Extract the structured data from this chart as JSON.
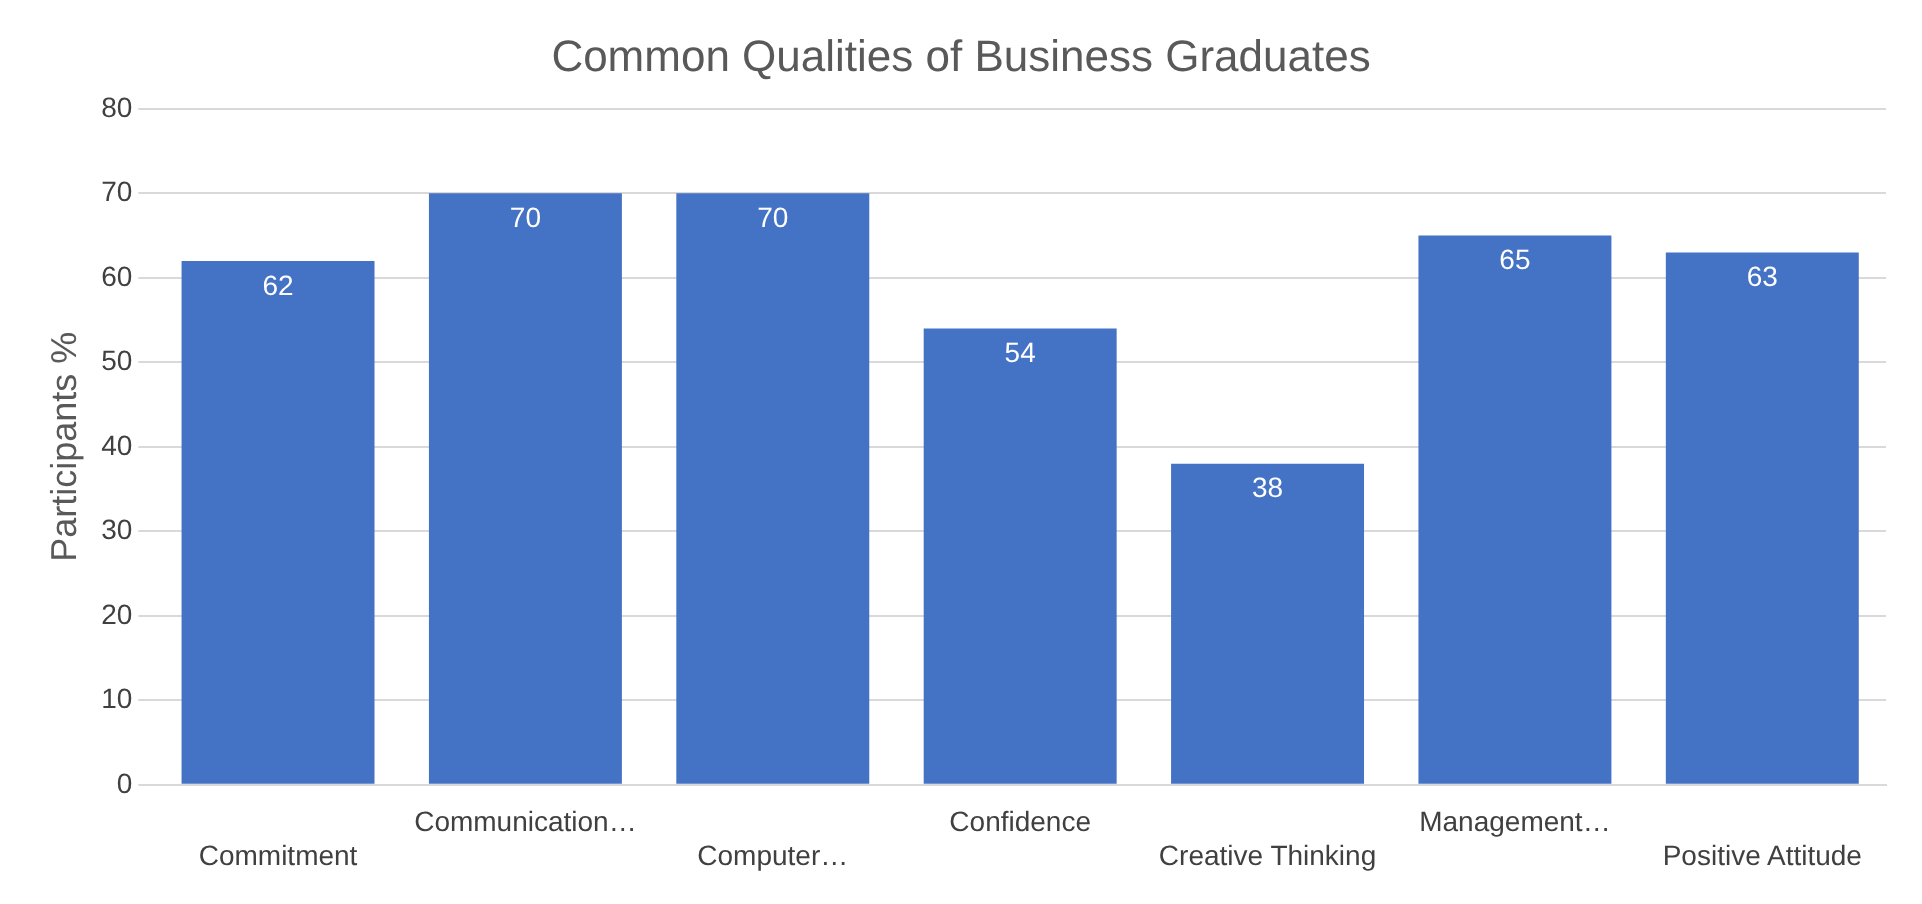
{
  "chart_data": {
    "type": "bar",
    "title": "Common Qualities of Business Graduates",
    "ylabel": "Participants %",
    "categories": [
      "Commitment",
      "Communication…",
      "Computer…",
      "Confidence",
      "Creative Thinking",
      "Management…",
      "Positive Attitude"
    ],
    "values": [
      62,
      70,
      70,
      54,
      38,
      65,
      63
    ],
    "color": "#4472c4",
    "ylim": [
      0,
      80
    ],
    "yticks": [
      0,
      10,
      20,
      30,
      40,
      50,
      60,
      70,
      80
    ],
    "grid": "y",
    "data_labels": true
  }
}
